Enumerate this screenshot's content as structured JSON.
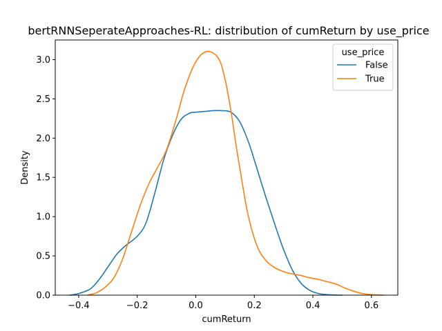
{
  "chart_data": {
    "type": "line",
    "title": "bertRNNSeperateApproaches-RL: distribution of cumReturn by use_price",
    "xlabel": "cumReturn",
    "ylabel": "Density",
    "xlim": [
      -0.48,
      0.69
    ],
    "ylim": [
      0,
      3.25
    ],
    "xticks": [
      -0.4,
      -0.2,
      0.0,
      0.2,
      0.4,
      0.6
    ],
    "xtick_labels": [
      "−0.4",
      "−0.2",
      "0.0",
      "0.2",
      "0.4",
      "0.6"
    ],
    "yticks": [
      0.0,
      0.5,
      1.0,
      1.5,
      2.0,
      2.5,
      3.0
    ],
    "ytick_labels": [
      "0.0",
      "0.5",
      "1.0",
      "1.5",
      "2.0",
      "2.5",
      "3.0"
    ],
    "grid": false,
    "legend": {
      "title": "use_price",
      "placement": "top-right"
    },
    "series": [
      {
        "name": "False",
        "color": "#1f77b4",
        "x": [
          -0.43,
          -0.4,
          -0.36,
          -0.33,
          -0.3,
          -0.27,
          -0.24,
          -0.2,
          -0.17,
          -0.14,
          -0.11,
          -0.08,
          -0.05,
          -0.02,
          0.0,
          0.03,
          0.06,
          0.09,
          0.12,
          0.15,
          0.18,
          0.21,
          0.24,
          0.27,
          0.3,
          0.33,
          0.36,
          0.39,
          0.42,
          0.45,
          0.48,
          0.5
        ],
        "y": [
          0.0,
          0.02,
          0.08,
          0.2,
          0.36,
          0.52,
          0.63,
          0.75,
          0.92,
          1.3,
          1.72,
          2.03,
          2.24,
          2.32,
          2.33,
          2.34,
          2.35,
          2.35,
          2.33,
          2.21,
          1.95,
          1.6,
          1.24,
          0.9,
          0.58,
          0.32,
          0.15,
          0.06,
          0.02,
          0.006,
          0.001,
          0.0
        ]
      },
      {
        "name": "True",
        "color": "#ff7f0e",
        "x": [
          -0.37,
          -0.34,
          -0.31,
          -0.28,
          -0.25,
          -0.22,
          -0.19,
          -0.16,
          -0.13,
          -0.1,
          -0.07,
          -0.04,
          -0.01,
          0.02,
          0.05,
          0.08,
          0.1,
          0.12,
          0.14,
          0.16,
          0.18,
          0.21,
          0.24,
          0.27,
          0.3,
          0.33,
          0.36,
          0.39,
          0.42,
          0.45,
          0.48,
          0.51,
          0.54,
          0.57,
          0.6,
          0.64
        ],
        "y": [
          0.0,
          0.03,
          0.1,
          0.22,
          0.46,
          0.8,
          1.14,
          1.42,
          1.63,
          1.85,
          2.2,
          2.6,
          2.9,
          3.07,
          3.1,
          3.0,
          2.75,
          2.35,
          1.85,
          1.4,
          1.0,
          0.62,
          0.44,
          0.35,
          0.3,
          0.27,
          0.25,
          0.22,
          0.2,
          0.17,
          0.14,
          0.09,
          0.05,
          0.02,
          0.006,
          0.0
        ]
      }
    ]
  }
}
